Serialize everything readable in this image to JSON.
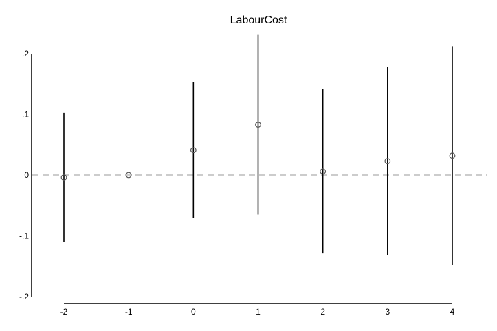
{
  "chart_data": {
    "type": "scatter",
    "title": "LabourCost",
    "xlabel": "",
    "ylabel": "",
    "x_ticks": [
      -2,
      -1,
      0,
      1,
      2,
      3,
      4
    ],
    "y_ticks": [
      -0.2,
      -0.1,
      0,
      0.1,
      0.2
    ],
    "y_tick_labels": [
      "-.2",
      "-.1",
      "0",
      ".1",
      ".2"
    ],
    "xlim": [
      -2,
      4
    ],
    "ylim": [
      -0.2,
      0.2
    ],
    "reference_line": {
      "y": 0,
      "style": "dashed",
      "color": "#bbbbbb"
    },
    "grid": false,
    "legend": "none",
    "series": [
      {
        "x": [
          -2,
          -1,
          0,
          1,
          2,
          3,
          4
        ],
        "values": [
          -0.004,
          0.0,
          0.041,
          0.083,
          0.006,
          0.023,
          0.032
        ],
        "ci_low": [
          -0.11,
          0.0,
          -0.071,
          -0.065,
          -0.129,
          -0.132,
          -0.148
        ],
        "ci_high": [
          0.103,
          0.0,
          0.153,
          0.231,
          0.142,
          0.178,
          0.212
        ]
      }
    ],
    "colors": {
      "marker": "#555555",
      "error_bar": "#000000",
      "axis": "#000000"
    }
  }
}
